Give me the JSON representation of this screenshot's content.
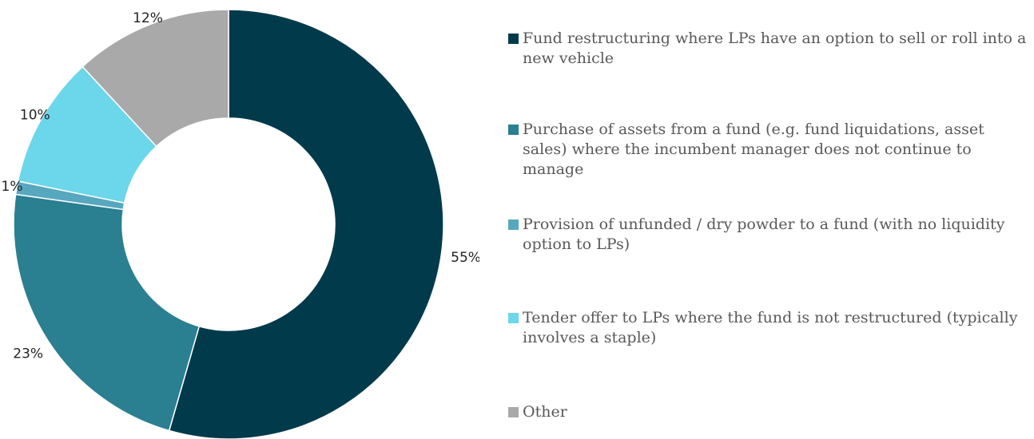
{
  "chart_data": {
    "type": "pie",
    "donut": true,
    "slices": [
      {
        "label": "Fund restructuring where LPs have an option to sell or roll into a new vehicle",
        "value": 55,
        "value_label": "55%",
        "color": "#013a4b"
      },
      {
        "label": "Purchase of assets from a fund (e.g. fund liquidations, asset sales) where the incumbent manager does not continue to manage",
        "value": 23,
        "value_label": "23%",
        "color": "#2a7f91"
      },
      {
        "label": "Provision of unfunded / dry powder to a fund (with no liquidity option to LPs)",
        "value": 1,
        "value_label": "1%",
        "color": "#57a8be"
      },
      {
        "label": "Tender offer to LPs where the fund is not restructured (typically involves a staple)",
        "value": 10,
        "value_label": "10%",
        "color": "#6cd6ea"
      },
      {
        "label": "Other",
        "value": 12,
        "value_label": "12%",
        "color": "#a9a9a9"
      }
    ],
    "legend_position": "right"
  }
}
